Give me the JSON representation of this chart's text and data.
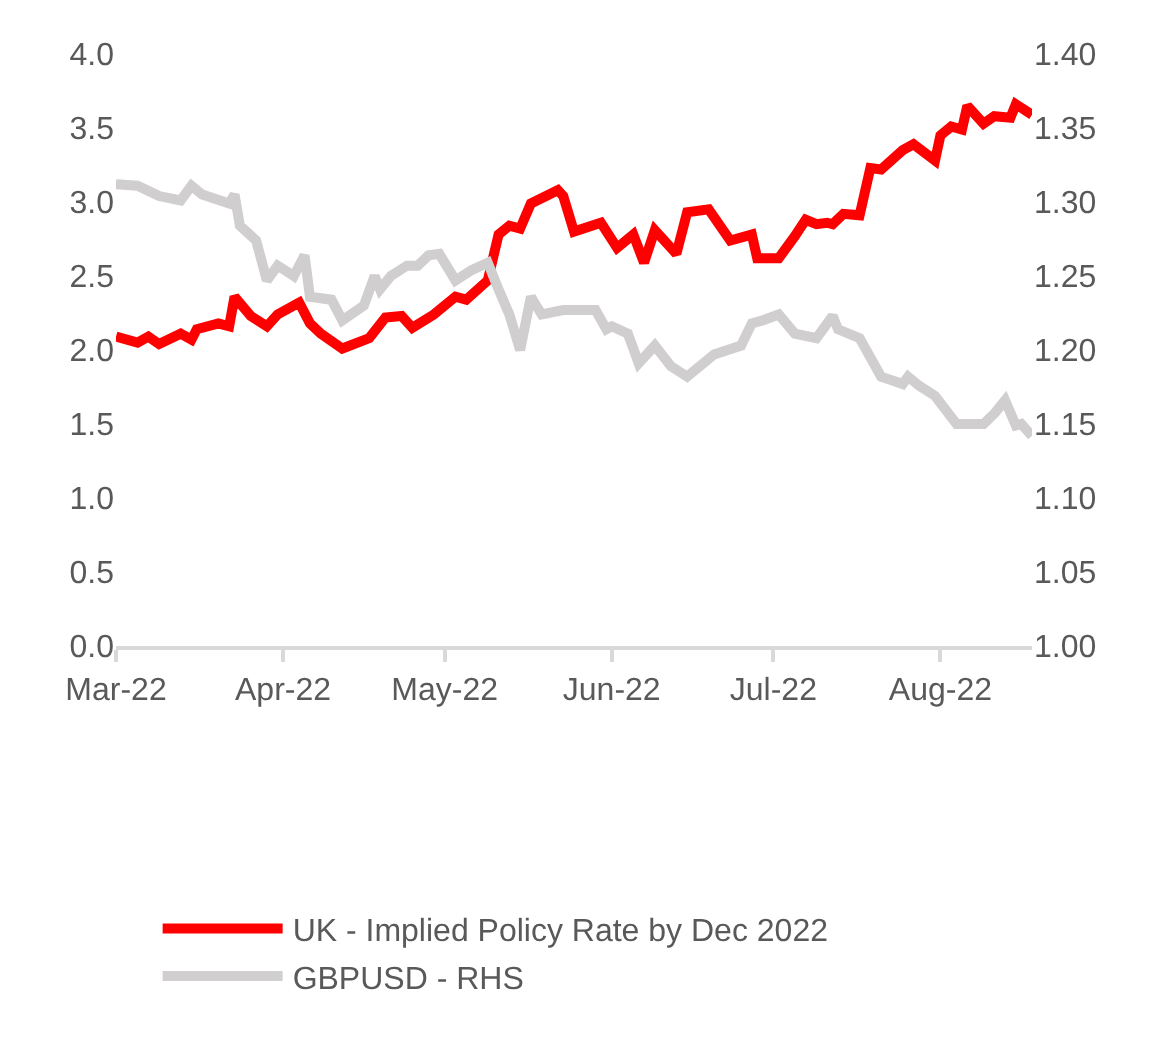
{
  "chart_data": {
    "type": "line",
    "legend": "bottom",
    "grid": false,
    "marker": "none",
    "line_style": "solid",
    "xlim": [
      "2022-03-01",
      "2022-08-18"
    ],
    "xticks": [
      {
        "value": "2022-03-01",
        "label": "Mar-22"
      },
      {
        "value": "2022-04-01",
        "label": "Apr-22"
      },
      {
        "value": "2022-05-01",
        "label": "May-22"
      },
      {
        "value": "2022-06-01",
        "label": "Jun-22"
      },
      {
        "value": "2022-07-01",
        "label": "Jul-22"
      },
      {
        "value": "2022-08-01",
        "label": "Aug-22"
      }
    ],
    "ylim": [
      0,
      4
    ],
    "yticks": [
      {
        "value": 0,
        "label": "0.0"
      },
      {
        "value": 0.5,
        "label": "0.5"
      },
      {
        "value": 1,
        "label": "1.0"
      },
      {
        "value": 1.5,
        "label": "1.5"
      },
      {
        "value": 2,
        "label": "2.0"
      },
      {
        "value": 2.5,
        "label": "2.5"
      },
      {
        "value": 3,
        "label": "3.0"
      },
      {
        "value": 3.5,
        "label": "3.5"
      },
      {
        "value": 4,
        "label": "4.0"
      }
    ],
    "y2lim": [
      1,
      1.4
    ],
    "y2ticks": [
      {
        "value": 1,
        "label": "1.00"
      },
      {
        "value": 1.05,
        "label": "1.05"
      },
      {
        "value": 1.1,
        "label": "1.10"
      },
      {
        "value": 1.15,
        "label": "1.15"
      },
      {
        "value": 1.2,
        "label": "1.20"
      },
      {
        "value": 1.25,
        "label": "1.25"
      },
      {
        "value": 1.3,
        "label": "1.30"
      },
      {
        "value": 1.35,
        "label": "1.35"
      },
      {
        "value": 1.4,
        "label": "1.40"
      }
    ],
    "series": [
      {
        "name": "UK - Implied Policy Rate by Dec 2022",
        "color": "#ff0000",
        "x": [
          "2022-03-01",
          "2022-03-05",
          "2022-03-07",
          "2022-03-09",
          "2022-03-13",
          "2022-03-15",
          "2022-03-16",
          "2022-03-20",
          "2022-03-22",
          "2022-03-23",
          "2022-03-26",
          "2022-03-29",
          "2022-03-31",
          "2022-04-04",
          "2022-04-06",
          "2022-04-08",
          "2022-04-12",
          "2022-04-17",
          "2022-04-20",
          "2022-04-23",
          "2022-04-25",
          "2022-04-29",
          "2022-05-03",
          "2022-05-05",
          "2022-05-09",
          "2022-05-11",
          "2022-05-13",
          "2022-05-15",
          "2022-05-17",
          "2022-05-22",
          "2022-05-23",
          "2022-05-25",
          "2022-05-30",
          "2022-06-02",
          "2022-06-05",
          "2022-06-07",
          "2022-06-09",
          "2022-06-13",
          "2022-06-15",
          "2022-06-19",
          "2022-06-23",
          "2022-06-27",
          "2022-06-28",
          "2022-07-02",
          "2022-07-05",
          "2022-07-07",
          "2022-07-09",
          "2022-07-11",
          "2022-07-12",
          "2022-07-14",
          "2022-07-17",
          "2022-07-19",
          "2022-07-21",
          "2022-07-25",
          "2022-07-27",
          "2022-07-31",
          "2022-08-01",
          "2022-08-03",
          "2022-08-05",
          "2022-08-06",
          "2022-08-09",
          "2022-08-11",
          "2022-08-14",
          "2022-08-15",
          "2022-08-18"
        ],
        "values": [
          2.09,
          2.05,
          2.09,
          2.04,
          2.11,
          2.07,
          2.14,
          2.18,
          2.16,
          2.36,
          2.23,
          2.16,
          2.24,
          2.32,
          2.18,
          2.11,
          2.01,
          2.08,
          2.22,
          2.23,
          2.15,
          2.24,
          2.36,
          2.34,
          2.47,
          2.78,
          2.84,
          2.82,
          2.99,
          3.08,
          3.04,
          2.8,
          2.86,
          2.69,
          2.78,
          2.59,
          2.81,
          2.65,
          2.93,
          2.95,
          2.74,
          2.78,
          2.62,
          2.62,
          2.77,
          2.88,
          2.85,
          2.86,
          2.85,
          2.92,
          2.91,
          3.23,
          3.22,
          3.35,
          3.39,
          3.28,
          3.45,
          3.51,
          3.49,
          3.65,
          3.53,
          3.58,
          3.57,
          3.66,
          3.59
        ]
      },
      {
        "name": "GBPUSD - RHS",
        "color": "#d0cece",
        "axis": "y2",
        "x": [
          "2022-03-01",
          "2022-03-05",
          "2022-03-09",
          "2022-03-13",
          "2022-03-15",
          "2022-03-17",
          "2022-03-22",
          "2022-03-23",
          "2022-03-24",
          "2022-03-27",
          "2022-03-29",
          "2022-03-31",
          "2022-04-03",
          "2022-04-05",
          "2022-04-06",
          "2022-04-10",
          "2022-04-12",
          "2022-04-16",
          "2022-04-18",
          "2022-04-19",
          "2022-04-21",
          "2022-04-24",
          "2022-04-26",
          "2022-04-28",
          "2022-04-30",
          "2022-05-03",
          "2022-05-06",
          "2022-05-09",
          "2022-05-11",
          "2022-05-13",
          "2022-05-15",
          "2022-05-17",
          "2022-05-19",
          "2022-05-23",
          "2022-05-29",
          "2022-05-31",
          "2022-06-01",
          "2022-06-04",
          "2022-06-06",
          "2022-06-09",
          "2022-06-12",
          "2022-06-15",
          "2022-06-20",
          "2022-06-25",
          "2022-06-27",
          "2022-06-29",
          "2022-07-02",
          "2022-07-05",
          "2022-07-09",
          "2022-07-12",
          "2022-07-13",
          "2022-07-17",
          "2022-07-21",
          "2022-07-25",
          "2022-07-26",
          "2022-07-28",
          "2022-07-31",
          "2022-08-04",
          "2022-08-09",
          "2022-08-11",
          "2022-08-13",
          "2022-08-15",
          "2022-08-16",
          "2022-08-18"
        ],
        "values": [
          1.312,
          1.311,
          1.304,
          1.301,
          1.311,
          1.305,
          1.299,
          1.305,
          1.284,
          1.274,
          1.247,
          1.257,
          1.25,
          1.264,
          1.236,
          1.234,
          1.22,
          1.23,
          1.25,
          1.241,
          1.25,
          1.257,
          1.257,
          1.264,
          1.265,
          1.247,
          1.254,
          1.259,
          1.241,
          1.224,
          1.2,
          1.236,
          1.224,
          1.227,
          1.227,
          1.214,
          1.216,
          1.211,
          1.191,
          1.203,
          1.189,
          1.182,
          1.197,
          1.203,
          1.218,
          1.22,
          1.224,
          1.211,
          1.208,
          1.223,
          1.214,
          1.208,
          1.182,
          1.177,
          1.182,
          1.176,
          1.169,
          1.15,
          1.15,
          1.157,
          1.166,
          1.149,
          1.15,
          1.142
        ]
      }
    ]
  }
}
